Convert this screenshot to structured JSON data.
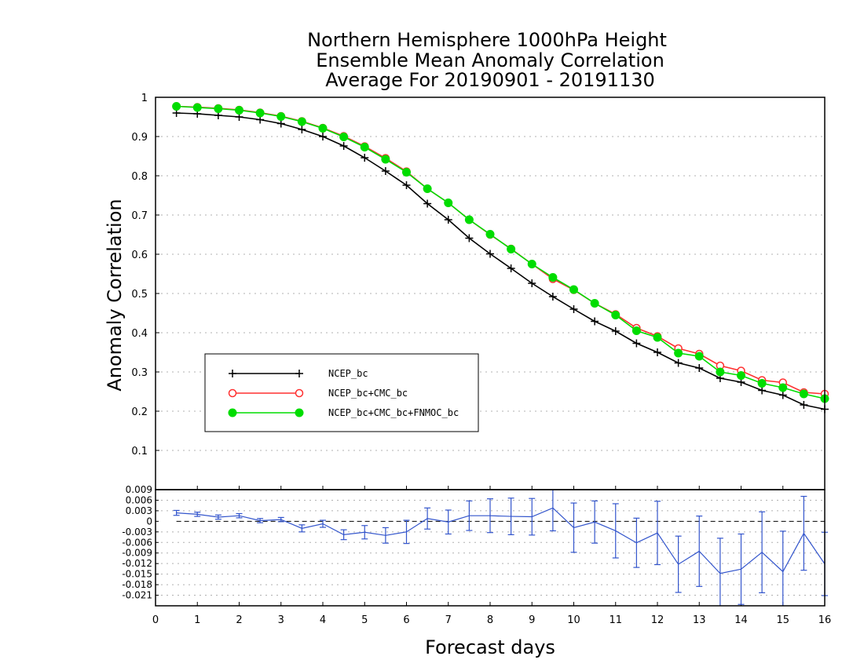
{
  "chart_data": {
    "type": "line",
    "title_lines": [
      "Northern Hemisphere 1000hPa Height",
      "Ensemble Mean Anomaly Correlation",
      "Average For 20190901 - 20191130"
    ],
    "xlabel": "Forecast days",
    "ylabel": "Anomaly Correlation",
    "xlim": [
      0,
      16
    ],
    "x_ticks": [
      "0",
      "1",
      "2",
      "3",
      "4",
      "5",
      "6",
      "7",
      "8",
      "9",
      "10",
      "11",
      "12",
      "13",
      "14",
      "15",
      "16"
    ],
    "top_panel": {
      "ylim": [
        0,
        1
      ],
      "y_ticks": [
        "0.1",
        "0.2",
        "0.3",
        "0.4",
        "0.5",
        "0.6",
        "0.7",
        "0.8",
        "0.9",
        "1"
      ],
      "grid": true,
      "legend_position": "lower-left",
      "x": [
        0.5,
        1,
        1.5,
        2,
        2.5,
        3,
        3.5,
        4,
        4.5,
        5,
        5.5,
        6,
        6.5,
        7,
        7.5,
        8,
        8.5,
        9,
        9.5,
        10,
        10.5,
        11,
        11.5,
        12,
        12.5,
        13,
        13.5,
        14,
        14.5,
        15,
        15.5,
        16
      ],
      "series": [
        {
          "name": "NCEP_bc",
          "color": "#000000",
          "marker": "plus",
          "values": [
            0.96,
            0.958,
            0.954,
            0.95,
            0.943,
            0.933,
            0.918,
            0.9,
            0.876,
            0.846,
            0.812,
            0.776,
            0.729,
            0.688,
            0.641,
            0.601,
            0.564,
            0.526,
            0.492,
            0.46,
            0.429,
            0.404,
            0.373,
            0.35,
            0.323,
            0.31,
            0.284,
            0.274,
            0.253,
            0.241,
            0.216,
            0.205
          ]
        },
        {
          "name": "NCEP_bc+CMC_bc",
          "color": "#ff3030",
          "marker": "open-circle",
          "values": [
            0.977,
            0.975,
            0.972,
            0.968,
            0.961,
            0.952,
            0.939,
            0.922,
            0.901,
            0.875,
            0.845,
            0.811,
            0.767,
            0.731,
            0.688,
            0.65,
            0.614,
            0.575,
            0.537,
            0.509,
            0.475,
            0.447,
            0.412,
            0.391,
            0.36,
            0.346,
            0.316,
            0.303,
            0.279,
            0.273,
            0.248,
            0.244
          ]
        },
        {
          "name": "NCEP_bc+CMC_bc+FNMOC_bc",
          "color": "#00dd00",
          "marker": "filled-circle",
          "values": [
            0.977,
            0.974,
            0.971,
            0.967,
            0.96,
            0.951,
            0.938,
            0.921,
            0.899,
            0.873,
            0.842,
            0.809,
            0.767,
            0.731,
            0.688,
            0.651,
            0.613,
            0.575,
            0.541,
            0.51,
            0.475,
            0.445,
            0.405,
            0.388,
            0.348,
            0.34,
            0.3,
            0.291,
            0.271,
            0.26,
            0.244,
            0.232
          ]
        }
      ]
    },
    "bottom_panel": {
      "ylim": [
        -0.024,
        0.009
      ],
      "y_ticks": [
        "0.009",
        "0.006",
        "0.003",
        "0",
        "-0.003",
        "-0.006",
        "-0.009",
        "-0.012",
        "-0.015",
        "-0.018",
        "-0.021"
      ],
      "grid": true,
      "zero_line": "dashed",
      "series": [
        {
          "color": "#3355cc",
          "x": [
            0.5,
            1,
            1.5,
            2,
            2.5,
            3,
            3.5,
            4,
            4.5,
            5,
            5.5,
            6,
            6.5,
            7,
            7.5,
            8,
            8.5,
            9,
            9.5,
            10,
            10.5,
            11,
            11.5,
            12,
            12.5,
            13,
            13.5,
            14,
            14.5,
            15,
            15.5,
            16
          ],
          "values": [
            0.0024,
            0.002,
            0.0012,
            0.0016,
            0.0002,
            0.0005,
            -0.002,
            -0.0007,
            -0.0038,
            -0.0031,
            -0.004,
            -0.003,
            0.0008,
            -0.0002,
            0.0016,
            0.0016,
            0.0014,
            0.0013,
            0.0038,
            -0.0018,
            -0.0002,
            -0.0027,
            -0.0061,
            -0.0033,
            -0.0122,
            -0.0085,
            -0.0148,
            -0.0136,
            -0.0088,
            -0.0143,
            -0.0034,
            -0.0121
          ],
          "err": [
            0.0007,
            0.0006,
            0.0006,
            0.0006,
            0.0006,
            0.0006,
            0.001,
            0.001,
            0.0014,
            0.0019,
            0.0022,
            0.0033,
            0.003,
            0.0034,
            0.0042,
            0.0048,
            0.0052,
            0.0052,
            0.0065,
            0.007,
            0.006,
            0.0077,
            0.007,
            0.009,
            0.008,
            0.01,
            0.01,
            0.01,
            0.0115,
            0.0115,
            0.0105,
            0.009
          ]
        }
      ]
    }
  }
}
